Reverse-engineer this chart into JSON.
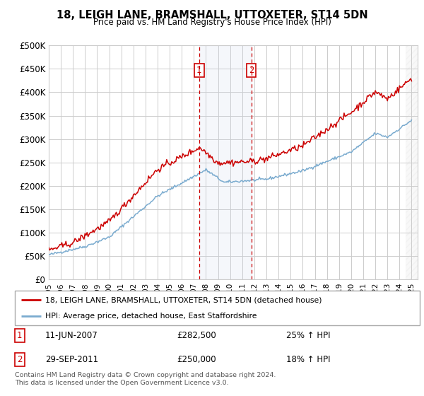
{
  "title1": "18, LEIGH LANE, BRAMSHALL, UTTOXETER, ST14 5DN",
  "title2": "Price paid vs. HM Land Registry's House Price Index (HPI)",
  "ylim": [
    0,
    500000
  ],
  "yticks": [
    0,
    50000,
    100000,
    150000,
    200000,
    250000,
    300000,
    350000,
    400000,
    450000,
    500000
  ],
  "ytick_labels": [
    "£0",
    "£50K",
    "£100K",
    "£150K",
    "£200K",
    "£250K",
    "£300K",
    "£350K",
    "£400K",
    "£450K",
    "£500K"
  ],
  "xlim_start": 1995.0,
  "xlim_end": 2025.5,
  "transaction1_date": 2007.44,
  "transaction2_date": 2011.75,
  "transaction1_label": "11-JUN-2007",
  "transaction1_amount": "£282,500",
  "transaction1_pct": "25% ↑ HPI",
  "transaction2_label": "29-SEP-2011",
  "transaction2_amount": "£250,000",
  "transaction2_pct": "18% ↑ HPI",
  "line_property_color": "#cc0000",
  "line_hpi_color": "#7aabcf",
  "legend_property": "18, LEIGH LANE, BRAMSHALL, UTTOXETER, ST14 5DN (detached house)",
  "legend_hpi": "HPI: Average price, detached house, East Staffordshire",
  "footnote": "Contains HM Land Registry data © Crown copyright and database right 2024.\nThis data is licensed under the Open Government Licence v3.0.",
  "hatch_start": 2024.5,
  "bg_color": "#ffffff",
  "grid_color": "#cccccc",
  "marker_box_color": "#cc0000"
}
